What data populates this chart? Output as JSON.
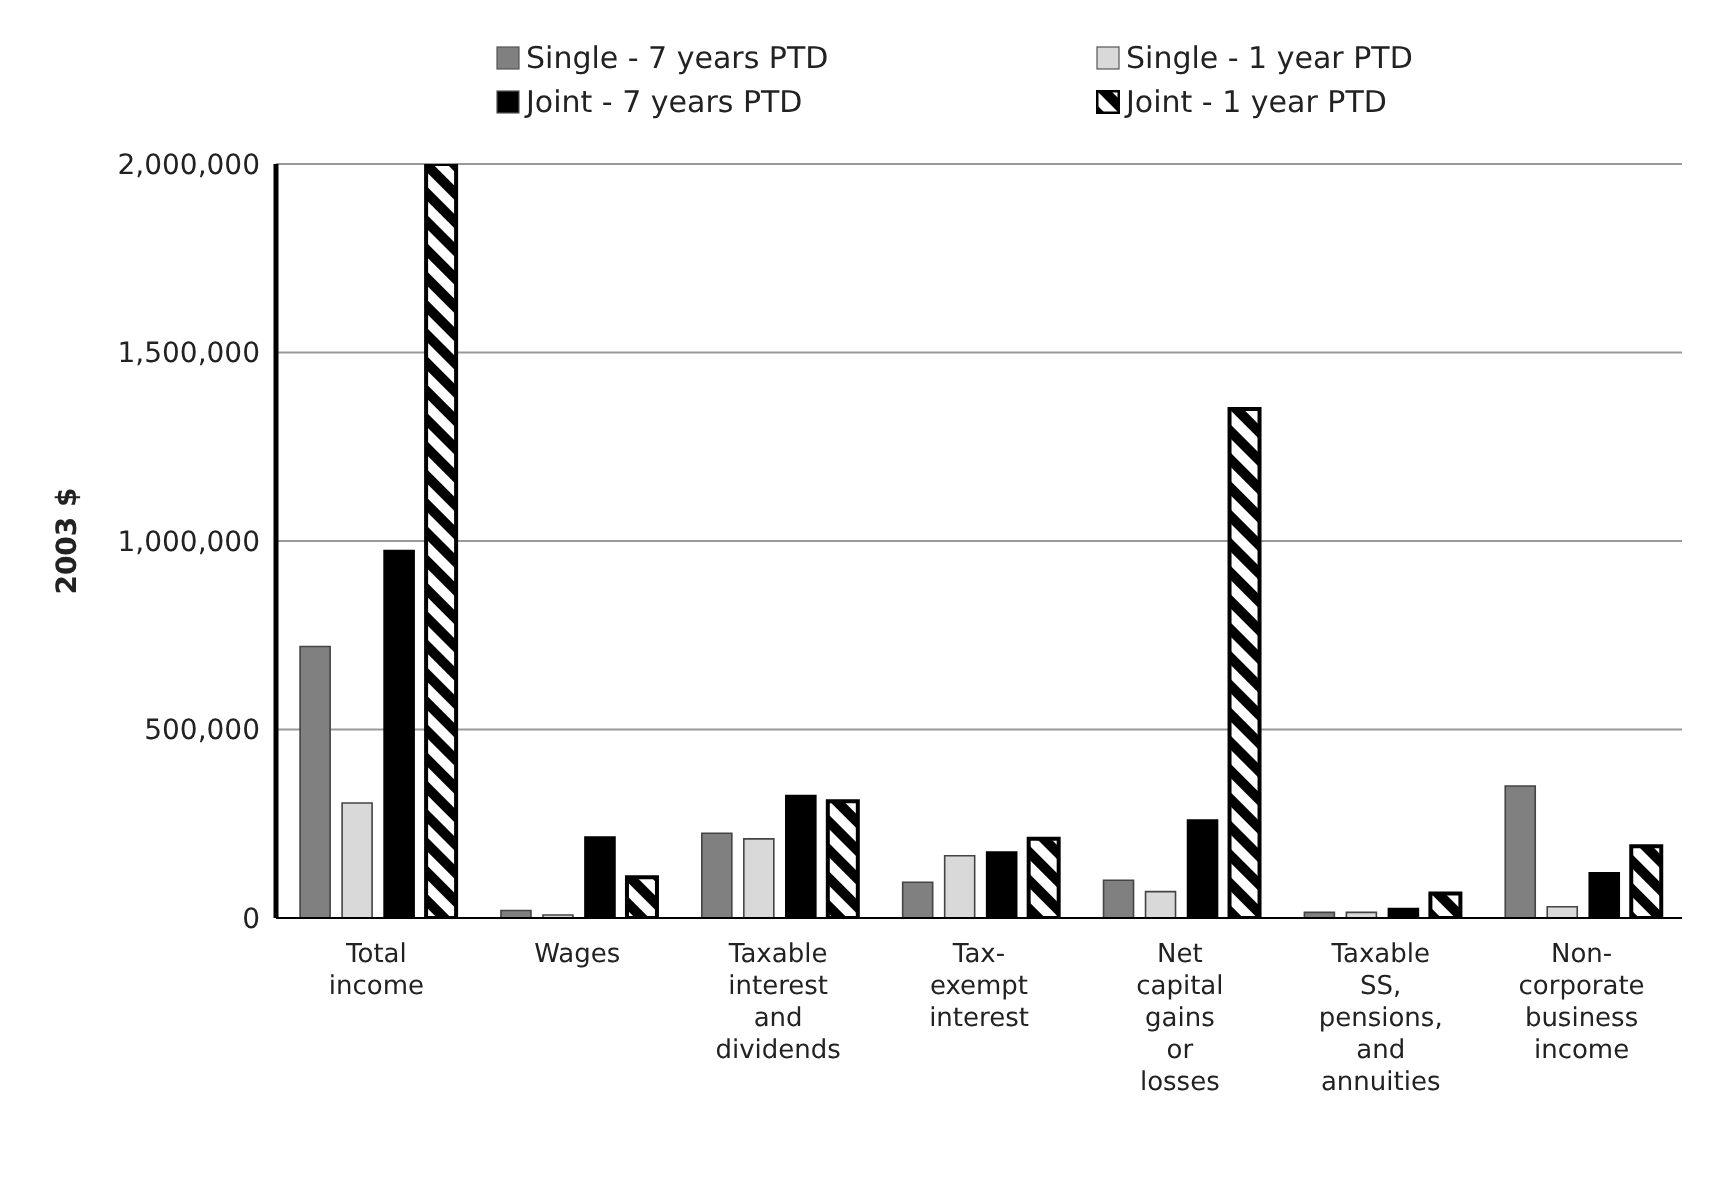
{
  "chart_data": {
    "type": "bar",
    "ylabel": "2003 $",
    "categories": [
      "Total income",
      "Wages",
      "Taxable interest and dividends",
      "Tax-exempt interest",
      "Net capital gains or losses",
      "Taxable SS, pensions, and annuities",
      "Non-corporate business income"
    ],
    "series": [
      {
        "name": "Single - 7 years PTD",
        "color": "#808080",
        "values": [
          720000,
          20000,
          225000,
          95000,
          100000,
          15000,
          350000
        ]
      },
      {
        "name": "Single - 1 year PTD",
        "color": "#d9d9d9",
        "values": [
          305000,
          8000,
          210000,
          165000,
          70000,
          15000,
          30000
        ]
      },
      {
        "name": "Joint - 7 years PTD",
        "color": "#000000",
        "values": [
          975000,
          215000,
          325000,
          175000,
          260000,
          25000,
          120000
        ]
      },
      {
        "name": "Joint - 1 year PTD",
        "color": "#000000",
        "values": [
          2000000,
          108000,
          310000,
          210000,
          1350000,
          65000,
          190000
        ]
      }
    ],
    "ylim": [
      0,
      2000000
    ],
    "yticks": [
      0,
      {
        "value": 500000,
        "label": "500,000"
      },
      {
        "value": 1000000,
        "label": "1,000,000"
      },
      {
        "value": 1500000,
        "label": "1,500,000"
      },
      {
        "value": 2000000,
        "label": "2,000,000"
      }
    ],
    "grid": "y",
    "legend": "top"
  }
}
